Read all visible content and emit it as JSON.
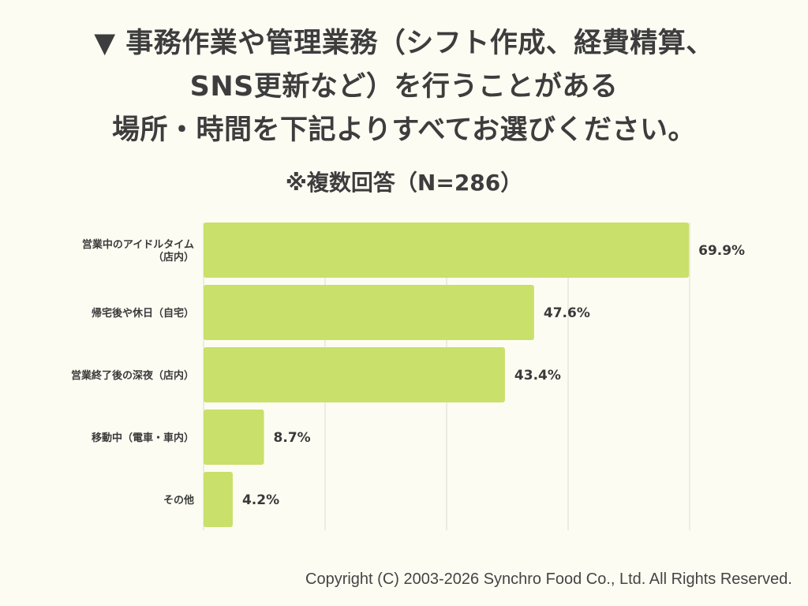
{
  "title_lines": [
    "▼ 事務作業や管理業務（シフト作成、経費精算、",
    "SNS更新など）を行うことがある",
    "場所・時間を下記よりすべてお選びください。"
  ],
  "subtitle": "※複数回答（N=286）",
  "copyright": "Copyright (C) 2003-2026  Synchro Food Co., Ltd. All Rights Reserved.",
  "colors": {
    "bar": "#c9e06a",
    "grid": "#dcdcd2",
    "text": "#3a3a3a"
  },
  "chart_data": {
    "type": "bar",
    "orientation": "horizontal",
    "categories": [
      [
        "営業中のアイドルタイム",
        "（店内）"
      ],
      [
        "帰宅後や休日（自宅）"
      ],
      [
        "営業終了後の深夜（店内）"
      ],
      [
        "移動中（電車・車内）"
      ],
      [
        "その他"
      ]
    ],
    "values": [
      69.9,
      47.6,
      43.4,
      8.7,
      4.2
    ],
    "value_labels": [
      "69.9%",
      "47.6%",
      "43.4%",
      "8.7%",
      "4.2%"
    ],
    "xlim": [
      0,
      70
    ],
    "grid": true,
    "unit": "%"
  }
}
